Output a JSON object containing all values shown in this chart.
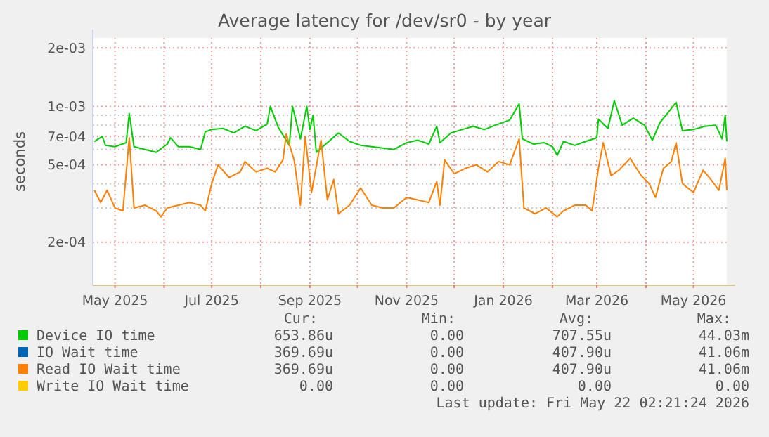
{
  "chart_data": {
    "type": "line",
    "title": "Average latency for /dev/sr0 - by year",
    "ylabel": "seconds",
    "log": "y",
    "grid": true,
    "legend": "bottom",
    "xlim": [
      "2025-04-17",
      "2026-05-22"
    ],
    "xticks": [
      {
        "value": "2025-05-01",
        "label": "May 2025"
      },
      {
        "value": "2025-06-01",
        "label": null
      },
      {
        "value": "2025-07-01",
        "label": "Jul 2025"
      },
      {
        "value": "2025-08-01",
        "label": null
      },
      {
        "value": "2025-09-01",
        "label": "Sep 2025"
      },
      {
        "value": "2025-10-01",
        "label": null
      },
      {
        "value": "2025-11-01",
        "label": "Nov 2025"
      },
      {
        "value": "2025-12-01",
        "label": null
      },
      {
        "value": "2026-01-01",
        "label": "Jan 2026"
      },
      {
        "value": "2026-02-01",
        "label": null
      },
      {
        "value": "2026-03-01",
        "label": "Mar 2026"
      },
      {
        "value": "2026-04-01",
        "label": null
      },
      {
        "value": "2026-05-01",
        "label": "May 2026"
      }
    ],
    "ylim": [
      0.00012,
      0.00225
    ],
    "yticks": [
      {
        "value": 0.002,
        "label": "2e-03"
      },
      {
        "value": 0.001,
        "label": "1e-03"
      },
      {
        "value": 0.0009,
        "label": null
      },
      {
        "value": 0.0008,
        "label": null
      },
      {
        "value": 0.0007,
        "label": "7e-04"
      },
      {
        "value": 0.0006,
        "label": null
      },
      {
        "value": 0.0005,
        "label": "5e-04"
      },
      {
        "value": 0.0004,
        "label": null
      },
      {
        "value": 0.0003,
        "label": null
      },
      {
        "value": 0.0002,
        "label": "2e-04"
      }
    ],
    "series": [
      {
        "name": "Device IO time",
        "color": "#00cc00",
        "x": [
          "2025-04-18",
          "2025-04-23",
          "2025-04-25",
          "2025-05-01",
          "2025-05-08",
          "2025-05-10",
          "2025-05-13",
          "2025-05-20",
          "2025-05-27",
          "2025-06-03",
          "2025-06-05",
          "2025-06-10",
          "2025-06-17",
          "2025-06-24",
          "2025-06-27",
          "2025-07-01",
          "2025-07-08",
          "2025-07-15",
          "2025-07-22",
          "2025-07-29",
          "2025-08-05",
          "2025-08-07",
          "2025-08-12",
          "2025-08-19",
          "2025-08-21",
          "2025-08-26",
          "2025-08-30",
          "2025-09-01",
          "2025-09-03",
          "2025-09-05",
          "2025-09-12",
          "2025-09-19",
          "2025-09-26",
          "2025-10-03",
          "2025-10-10",
          "2025-10-17",
          "2025-10-24",
          "2025-11-01",
          "2025-11-08",
          "2025-11-15",
          "2025-11-20",
          "2025-11-22",
          "2025-11-29",
          "2025-12-06",
          "2025-12-13",
          "2025-12-20",
          "2025-12-27",
          "2026-01-05",
          "2026-01-11",
          "2026-01-13",
          "2026-01-20",
          "2026-01-27",
          "2026-02-01",
          "2026-02-04",
          "2026-02-08",
          "2026-02-15",
          "2026-02-22",
          "2026-03-01",
          "2026-03-02",
          "2026-03-08",
          "2026-03-12",
          "2026-03-17",
          "2026-03-24",
          "2026-03-31",
          "2026-04-05",
          "2026-04-10",
          "2026-04-15",
          "2026-04-20",
          "2026-04-24",
          "2026-05-01",
          "2026-05-08",
          "2026-05-15",
          "2026-05-19",
          "2026-05-21",
          "2026-05-22"
        ],
        "values": [
          0.00066,
          0.0007,
          0.00063,
          0.00062,
          0.00065,
          0.00092,
          0.00062,
          0.0006,
          0.00058,
          0.00064,
          0.00069,
          0.00062,
          0.00062,
          0.0006,
          0.00074,
          0.00076,
          0.00077,
          0.00073,
          0.00079,
          0.00075,
          0.00081,
          0.001,
          0.00078,
          0.00063,
          0.001,
          0.00068,
          0.001,
          0.00076,
          0.0009,
          0.00058,
          0.00065,
          0.00073,
          0.00066,
          0.00063,
          0.00062,
          0.00061,
          0.0006,
          0.00065,
          0.00067,
          0.00064,
          0.00079,
          0.00065,
          0.00073,
          0.00076,
          0.00079,
          0.00076,
          0.0008,
          0.00085,
          0.00103,
          0.00068,
          0.00064,
          0.00065,
          0.00062,
          0.00056,
          0.00066,
          0.00063,
          0.00066,
          0.00069,
          0.00086,
          0.00077,
          0.00107,
          0.0008,
          0.00087,
          0.0008,
          0.00067,
          0.00083,
          0.00093,
          0.00105,
          0.00075,
          0.00076,
          0.00079,
          0.0008,
          0.00068,
          0.0009,
          0.00066
        ]
      },
      {
        "name": "IO Wait time",
        "color": "#0066b3"
      },
      {
        "name": "Read IO Wait time",
        "color": "#ff8000",
        "x": [
          "2025-04-18",
          "2025-04-22",
          "2025-04-26",
          "2025-05-01",
          "2025-05-06",
          "2025-05-10",
          "2025-05-13",
          "2025-05-20",
          "2025-05-27",
          "2025-05-30",
          "2025-06-03",
          "2025-06-10",
          "2025-06-17",
          "2025-06-24",
          "2025-06-27",
          "2025-07-01",
          "2025-07-05",
          "2025-07-12",
          "2025-07-19",
          "2025-07-22",
          "2025-07-29",
          "2025-08-05",
          "2025-08-10",
          "2025-08-15",
          "2025-08-17",
          "2025-08-22",
          "2025-08-26",
          "2025-08-29",
          "2025-09-02",
          "2025-09-08",
          "2025-09-12",
          "2025-09-16",
          "2025-09-19",
          "2025-09-26",
          "2025-10-03",
          "2025-10-10",
          "2025-10-17",
          "2025-10-24",
          "2025-11-01",
          "2025-11-08",
          "2025-11-15",
          "2025-11-20",
          "2025-11-22",
          "2025-11-25",
          "2025-12-01",
          "2025-12-08",
          "2025-12-15",
          "2025-12-22",
          "2025-12-29",
          "2026-01-05",
          "2026-01-11",
          "2026-01-14",
          "2026-01-21",
          "2026-01-28",
          "2026-02-04",
          "2026-02-08",
          "2026-02-15",
          "2026-02-22",
          "2026-02-26",
          "2026-03-02",
          "2026-03-05",
          "2026-03-10",
          "2026-03-15",
          "2026-03-22",
          "2026-03-29",
          "2026-04-03",
          "2026-04-07",
          "2026-04-12",
          "2026-04-17",
          "2026-04-20",
          "2026-04-24",
          "2026-05-01",
          "2026-05-07",
          "2026-05-12",
          "2026-05-17",
          "2026-05-21",
          "2026-05-22"
        ],
        "values": [
          0.00037,
          0.00032,
          0.00037,
          0.0003,
          0.00029,
          0.00069,
          0.0003,
          0.00031,
          0.00029,
          0.00027,
          0.0003,
          0.00031,
          0.00032,
          0.00031,
          0.00029,
          0.0004,
          0.0005,
          0.00043,
          0.00046,
          0.00052,
          0.00046,
          0.00048,
          0.00046,
          0.00053,
          0.00072,
          0.00053,
          0.00031,
          0.0007,
          0.00036,
          0.00067,
          0.00033,
          0.00042,
          0.00028,
          0.00031,
          0.00038,
          0.00031,
          0.0003,
          0.0003,
          0.00034,
          0.00033,
          0.00032,
          0.00041,
          0.00031,
          0.00053,
          0.00045,
          0.00048,
          0.0005,
          0.00046,
          0.00052,
          0.0005,
          0.00068,
          0.0003,
          0.00028,
          0.0003,
          0.00027,
          0.00029,
          0.00031,
          0.00031,
          0.00029,
          0.00048,
          0.00065,
          0.00044,
          0.00047,
          0.00054,
          0.00044,
          0.0004,
          0.00034,
          0.00048,
          0.00052,
          0.00065,
          0.0004,
          0.00036,
          0.00047,
          0.00042,
          0.00037,
          0.00054,
          0.00037
        ]
      },
      {
        "name": "Write IO Wait time",
        "color": "#ffcc00"
      }
    ],
    "annotations": [
      "Cur:",
      "Min:",
      "Avg:",
      "Max:",
      "653.86u",
      "0.00",
      "707.55u",
      "44.03m",
      "369.69u",
      "0.00",
      "407.90u",
      "41.06m",
      "369.69u",
      "0.00",
      "407.90u",
      "41.06m",
      "0.00",
      "0.00",
      "0.00",
      "0.00",
      "Last update: Fri May 22 02:21:24 2026"
    ]
  }
}
